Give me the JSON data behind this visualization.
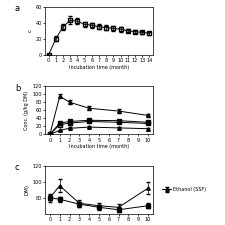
{
  "panel_a": {
    "label": "a",
    "series": [
      {
        "x": [
          0,
          1,
          2,
          3,
          4,
          5,
          6,
          7,
          8,
          9,
          10,
          11,
          12,
          13,
          14
        ],
        "y": [
          0,
          20,
          35,
          43,
          42,
          38,
          37,
          35,
          34,
          33,
          32,
          30,
          29,
          28,
          27
        ],
        "yerr": [
          0,
          3,
          4,
          5,
          4,
          3,
          3,
          3,
          3,
          3,
          3,
          2,
          2,
          2,
          2
        ],
        "marker": "s",
        "fillstyle": "none",
        "color": "black",
        "linestyle": "-"
      }
    ],
    "ylabel": "c",
    "xlabel": "Incubation time (month)",
    "xlim": [
      -0.5,
      14.5
    ],
    "ylim": [
      0,
      60
    ],
    "yticks": [
      0,
      20,
      40,
      60
    ],
    "xticks": [
      0,
      1,
      2,
      3,
      4,
      5,
      6,
      7,
      8,
      9,
      10,
      11,
      12,
      13,
      14
    ]
  },
  "panel_b": {
    "label": "b",
    "series": [
      {
        "x": [
          0,
          1,
          2,
          4,
          7,
          10
        ],
        "y": [
          0,
          95,
          80,
          65,
          58,
          47
        ],
        "yerr": [
          0,
          5,
          5,
          5,
          4,
          4
        ],
        "marker": "^",
        "fillstyle": "none",
        "color": "black",
        "linestyle": "-"
      },
      {
        "x": [
          0,
          1,
          2,
          4,
          7,
          10
        ],
        "y": [
          0,
          28,
          32,
          35,
          34,
          30
        ],
        "yerr": [
          0,
          2,
          2,
          2,
          2,
          2
        ],
        "marker": "s",
        "fillstyle": "full",
        "color": "black",
        "linestyle": "-"
      },
      {
        "x": [
          0,
          1,
          2,
          4,
          7,
          10
        ],
        "y": [
          0,
          24,
          28,
          32,
          30,
          27
        ],
        "yerr": [
          0,
          2,
          2,
          2,
          2,
          2
        ],
        "marker": "s",
        "fillstyle": "none",
        "color": "black",
        "linestyle": "-"
      },
      {
        "x": [
          0,
          1,
          2,
          4,
          7,
          10
        ],
        "y": [
          0,
          10,
          15,
          18,
          16,
          14
        ],
        "yerr": [
          0,
          2,
          2,
          2,
          2,
          2
        ],
        "marker": "^",
        "fillstyle": "full",
        "color": "black",
        "linestyle": "-"
      }
    ],
    "ylabel": "Conc. (g/kg DM)",
    "xlabel": "Incubation time (month)",
    "xlim": [
      -0.5,
      10.5
    ],
    "ylim": [
      0,
      120
    ],
    "yticks": [
      0,
      20,
      40,
      60,
      80,
      100,
      120
    ],
    "xticks": [
      0,
      1,
      2,
      3,
      4,
      5,
      6,
      7,
      8,
      9,
      10
    ]
  },
  "panel_c": {
    "label": "c",
    "series": [
      {
        "x": [
          0,
          1,
          3,
          5,
          7,
          10
        ],
        "y": [
          80,
          95,
          73,
          70,
          68,
          92
        ],
        "yerr": [
          5,
          8,
          4,
          4,
          4,
          8
        ],
        "marker": "^",
        "fillstyle": "none",
        "color": "black",
        "linestyle": "-",
        "legend": "Ethanol (SSF)"
      },
      {
        "x": [
          0,
          1,
          3,
          5,
          7,
          10
        ],
        "y": [
          80,
          78,
          72,
          68,
          65,
          70
        ],
        "yerr": [
          3,
          3,
          3,
          3,
          3,
          3
        ],
        "marker": "s",
        "fillstyle": "full",
        "color": "black",
        "linestyle": "-",
        "legend": ""
      }
    ],
    "ylabel": "DM)",
    "xlabel": "",
    "xlim": [
      -0.5,
      10.5
    ],
    "ylim": [
      60,
      120
    ],
    "yticks": [
      80,
      100,
      120
    ],
    "xticks": [
      0,
      1,
      2,
      3,
      4,
      5,
      6,
      7,
      8,
      9,
      10
    ]
  },
  "fig_width": 2.25,
  "fig_height": 2.25,
  "dpi": 100
}
